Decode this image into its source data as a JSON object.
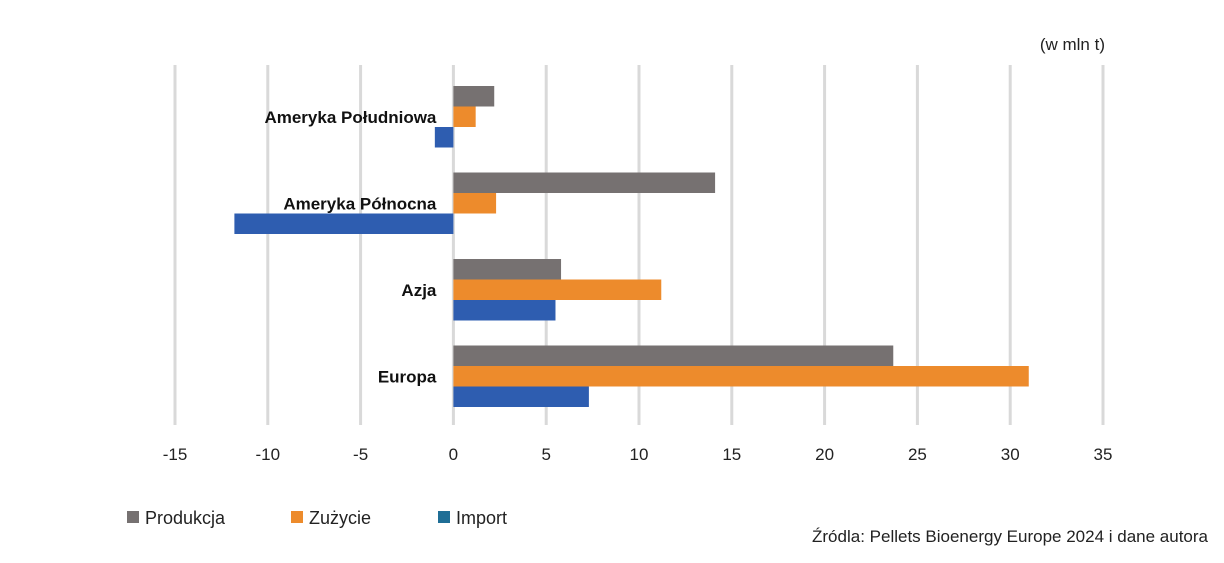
{
  "chart_data": {
    "type": "bar",
    "orientation": "horizontal",
    "unit_label": "(w mln t)",
    "categories": [
      "Ameryka Południowa",
      "Ameryka Północna",
      "Azja",
      "Europa"
    ],
    "series": [
      {
        "name": "Produkcja",
        "color": "#767171",
        "values": [
          2.2,
          14.1,
          5.8,
          23.7
        ]
      },
      {
        "name": "Zużycie",
        "color": "#ED8B2C",
        "values": [
          1.2,
          2.3,
          11.2,
          31.0
        ]
      },
      {
        "name": "Import",
        "color": "#2E5DB0",
        "values": [
          -1.0,
          -11.8,
          5.5,
          7.3
        ]
      }
    ],
    "legend_colors": [
      "#767171",
      "#ED8B2C",
      "#1F6E96"
    ],
    "xlim": [
      -15,
      35
    ],
    "xticks": [
      -15,
      -10,
      -5,
      0,
      5,
      10,
      15,
      20,
      25,
      30,
      35
    ],
    "grid": true,
    "legend_position": "bottom-left",
    "source": "Źródla: Pellets Bioenergy Europe 2024 i dane autora"
  }
}
